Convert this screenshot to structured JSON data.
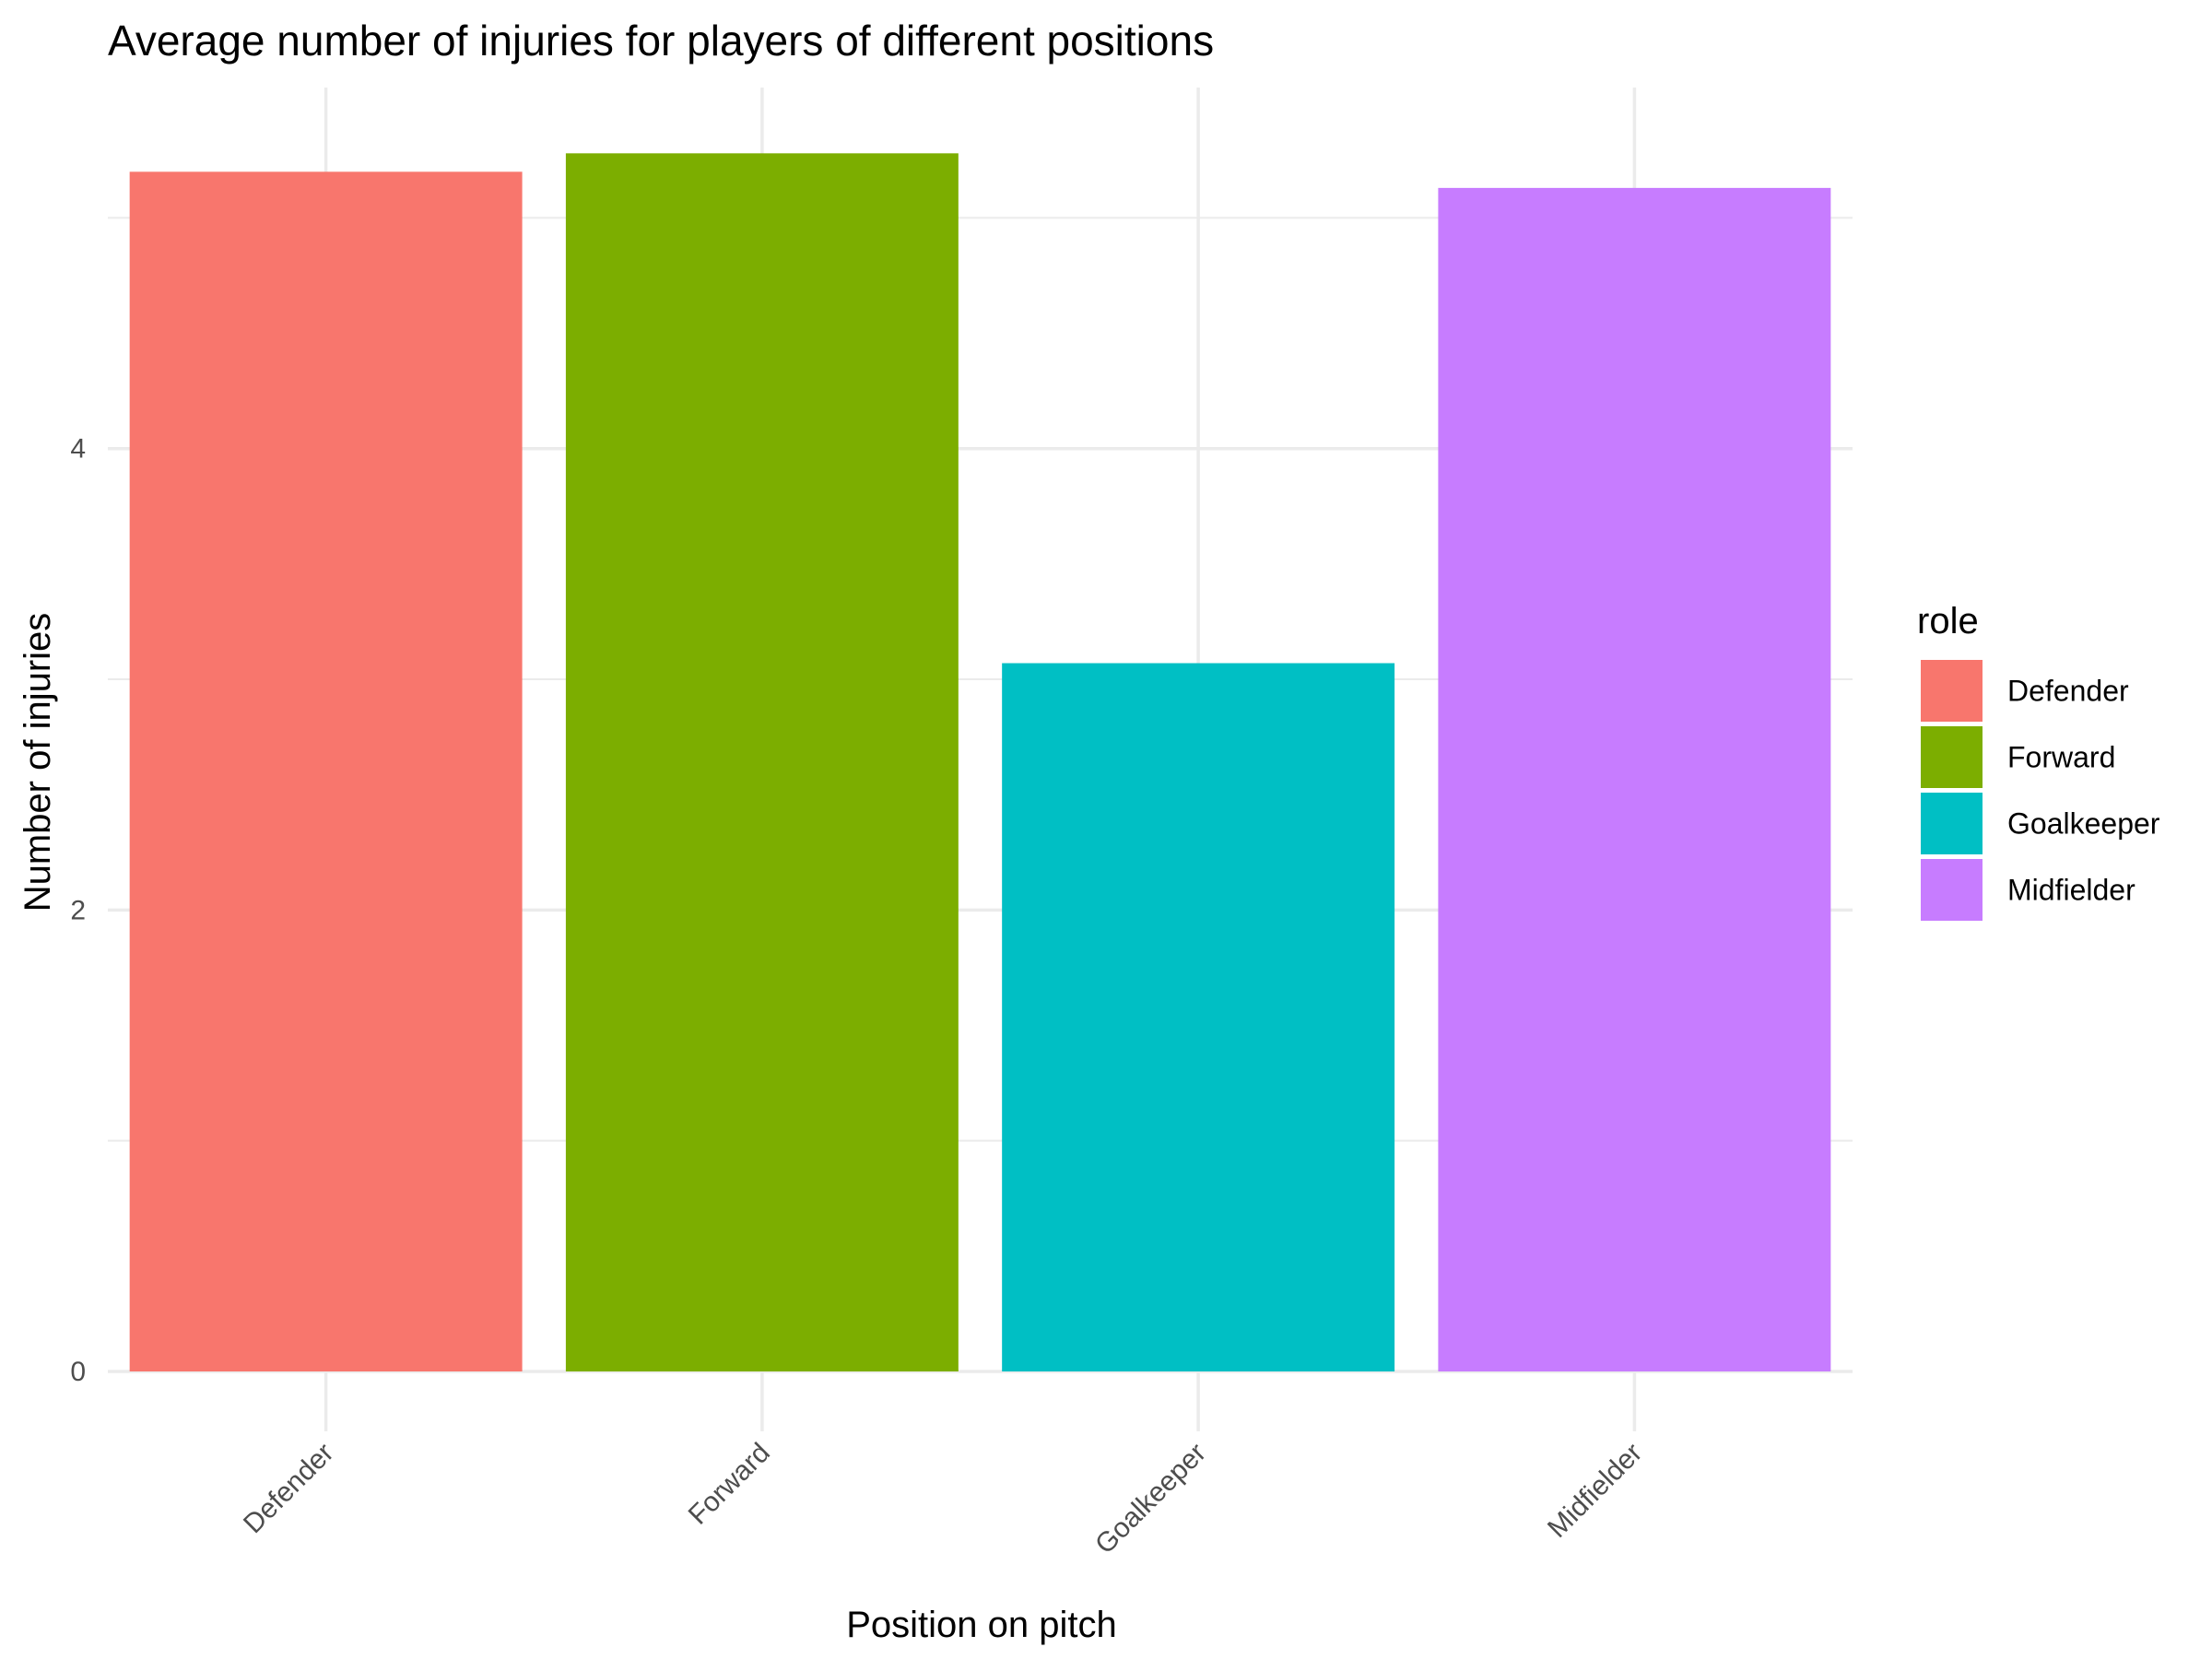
{
  "chart_data": {
    "type": "bar",
    "title": "Average number of injuries for players of different positions",
    "xlabel": "Position on pitch",
    "ylabel": "Number of injuries",
    "categories": [
      "Defender",
      "Forward",
      "Goalkeeper",
      "Midfielder"
    ],
    "values": [
      5.2,
      5.28,
      3.07,
      5.13
    ],
    "colors": [
      "#F8766D",
      "#7CAE00",
      "#00BFC4",
      "#C77CFF"
    ],
    "ylim": [
      0,
      5.3
    ],
    "yticks": [
      0,
      2,
      4
    ],
    "ytick_labels": [
      "0",
      "2",
      "4"
    ],
    "y_minor_ticks": [
      1,
      3,
      5
    ],
    "grid": true,
    "legend": {
      "title": "role",
      "position": "right",
      "items": [
        "Defender",
        "Forward",
        "Goalkeeper",
        "Midfielder"
      ]
    }
  }
}
